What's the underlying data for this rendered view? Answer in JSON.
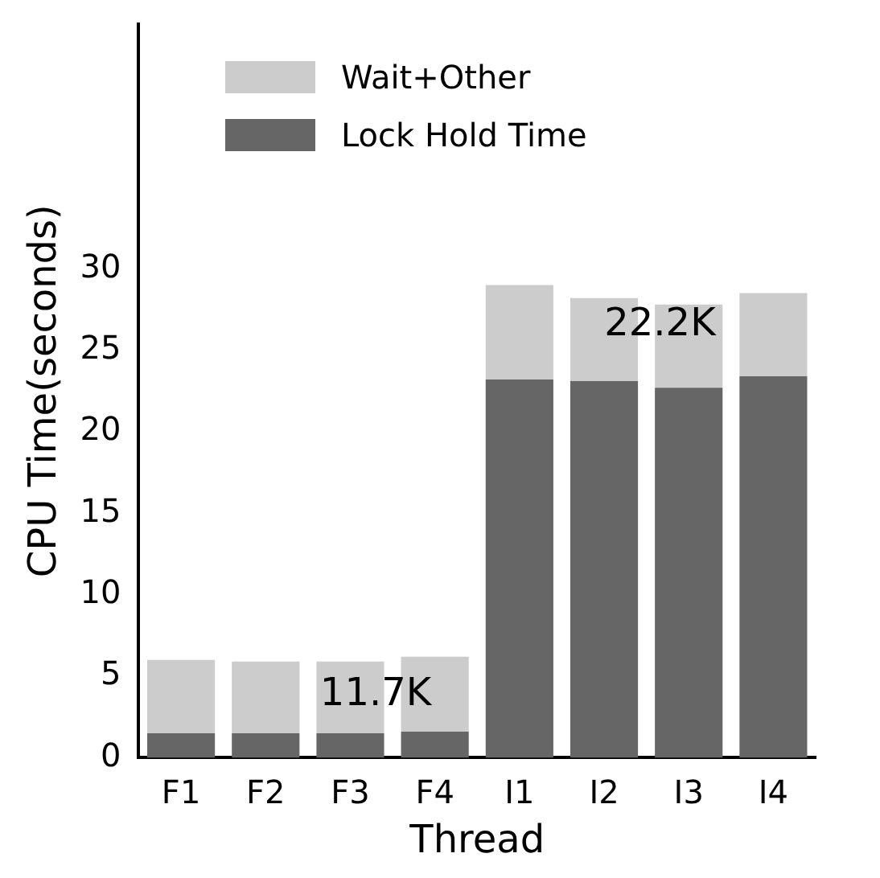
{
  "chart_data": {
    "type": "bar",
    "stacked": true,
    "xlabel": "Thread",
    "ylabel": "CPU Time(seconds)",
    "categories": [
      "F1",
      "F2",
      "F3",
      "F4",
      "I1",
      "I2",
      "I3",
      "I4"
    ],
    "series": [
      {
        "name": "Lock Hold Time",
        "color": "#666666",
        "values": [
          1.5,
          1.5,
          1.5,
          1.6,
          23.2,
          23.1,
          22.7,
          23.4
        ]
      },
      {
        "name": "Wait+Other",
        "color": "#cccccc",
        "values": [
          4.5,
          4.4,
          4.4,
          4.6,
          5.8,
          5.1,
          5.1,
          5.1
        ]
      }
    ],
    "ylim": [
      0,
      45
    ],
    "yticks": [
      0,
      5,
      10,
      15,
      20,
      25,
      30
    ],
    "grid": false,
    "legend": "top left",
    "annotations": [
      "11.7K",
      "22.2K"
    ]
  }
}
